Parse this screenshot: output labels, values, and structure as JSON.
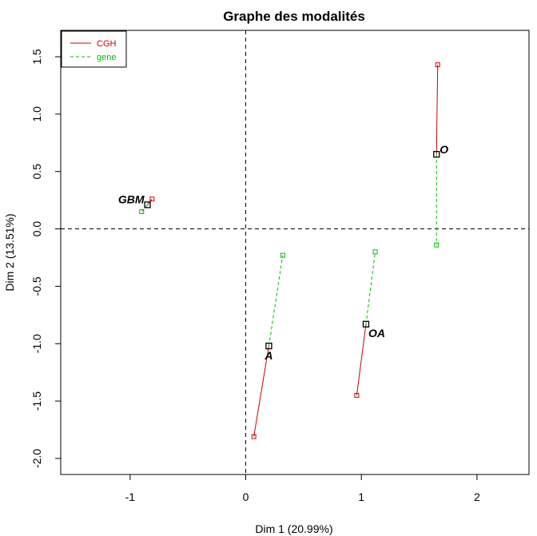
{
  "chart_data": {
    "type": "scatter",
    "title": "Graphe des modalités",
    "xlabel": "Dim 1 (20.99%)",
    "ylabel": "Dim 2 (13.51%)",
    "xlim": [
      -1.6,
      2.45
    ],
    "ylim": [
      -2.14,
      1.73
    ],
    "xticks": [
      -1,
      0,
      1,
      2
    ],
    "yticks": [
      -2.0,
      -1.5,
      -1.0,
      -0.5,
      0.0,
      0.5,
      1.0,
      1.5
    ],
    "xtick_labels": [
      "-1",
      "0",
      "1",
      "2"
    ],
    "ytick_labels": [
      "-2.0",
      "-1.5",
      "-1.0",
      "-0.5",
      "0.0",
      "0.5",
      "1.0",
      "1.5"
    ],
    "grid": false,
    "reference_lines": {
      "x": 0,
      "y": 0,
      "style": "dashed"
    },
    "legend": {
      "position": "top-left",
      "entries": [
        {
          "name": "CGH",
          "color": "#cc0000",
          "style": "solid"
        },
        {
          "name": "gene",
          "color": "#00bb00",
          "style": "dashed"
        }
      ]
    },
    "series": [
      {
        "name": "CGH",
        "color": "#cc0000",
        "style": "solid",
        "points": [
          {
            "group": "GBM",
            "x": -0.81,
            "y": 0.26
          },
          {
            "group": "O",
            "x": 1.66,
            "y": 1.43
          },
          {
            "group": "A",
            "x": 0.07,
            "y": -1.81
          },
          {
            "group": "OA",
            "x": 0.96,
            "y": -1.45
          }
        ]
      },
      {
        "name": "gene",
        "color": "#00bb00",
        "style": "dashed",
        "points": [
          {
            "group": "GBM",
            "x": -0.9,
            "y": 0.15
          },
          {
            "group": "O",
            "x": 1.65,
            "y": -0.14
          },
          {
            "group": "A",
            "x": 0.32,
            "y": -0.23
          },
          {
            "group": "OA",
            "x": 1.12,
            "y": -0.2
          }
        ]
      }
    ],
    "centroids": [
      {
        "label": "GBM",
        "x": -0.85,
        "y": 0.21,
        "label_anchor": "left"
      },
      {
        "label": "O",
        "x": 1.65,
        "y": 0.65,
        "label_anchor": "right"
      },
      {
        "label": "A",
        "x": 0.2,
        "y": -1.02,
        "label_anchor": "below"
      },
      {
        "label": "OA",
        "x": 1.04,
        "y": -0.83,
        "label_anchor": "below-right"
      }
    ],
    "centroid_color": "#000000"
  }
}
